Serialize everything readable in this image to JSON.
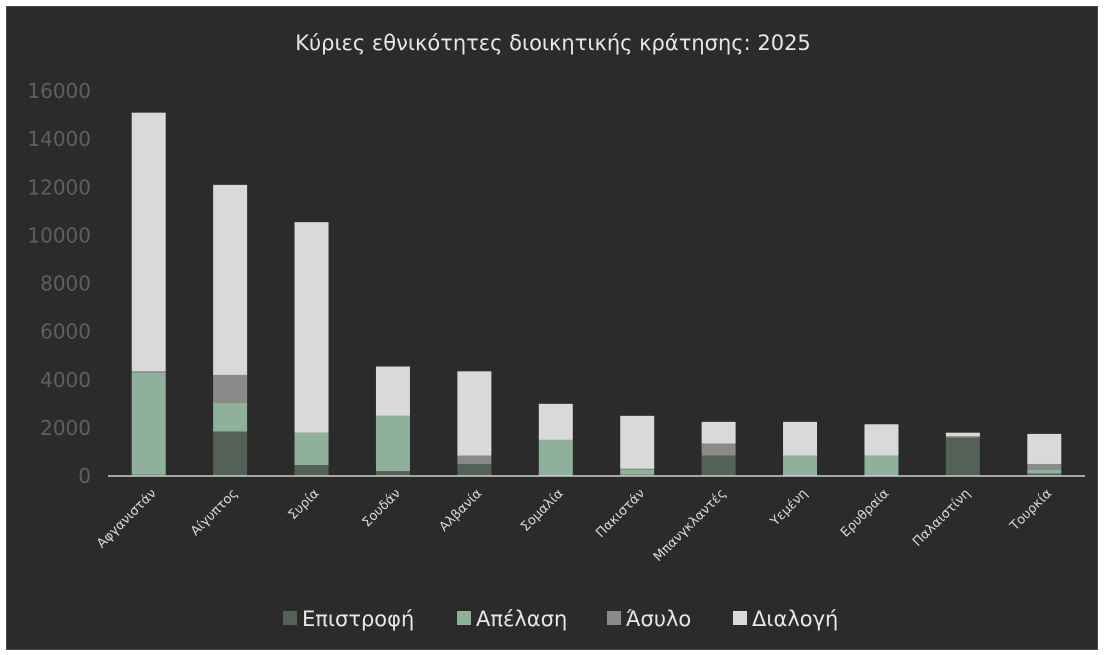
{
  "chart_data": {
    "type": "bar",
    "stacked": true,
    "title": "Κύριες εθνικότητες διοικητικής κράτησης: 2025",
    "categories": [
      "Αφγανιστάν",
      "Αίγυπτος",
      "Συρία",
      "Σουδάν",
      "Αλβανία",
      "Σομαλία",
      "Πακιστάν",
      "Μπανγκλαντές",
      "Υεμένη",
      "Ερυθραία",
      "Παλαιστίνη",
      "Τουρκία"
    ],
    "series": [
      {
        "name": "Επιστροφή",
        "color": "#546156",
        "values": [
          50,
          1850,
          450,
          200,
          500,
          0,
          50,
          850,
          0,
          0,
          1600,
          100
        ]
      },
      {
        "name": "Απέλαση",
        "color": "#8fb09b",
        "values": [
          4250,
          1200,
          1350,
          2300,
          0,
          1500,
          200,
          0,
          850,
          850,
          0,
          150
        ]
      },
      {
        "name": "Άσυλο",
        "color": "#8a8a8a",
        "values": [
          50,
          1150,
          0,
          0,
          350,
          0,
          50,
          500,
          0,
          0,
          50,
          250
        ]
      },
      {
        "name": "Διαλογή",
        "color": "#d9d9d9",
        "values": [
          10750,
          7900,
          8750,
          2050,
          3500,
          1500,
          2200,
          900,
          1400,
          1300,
          150,
          1250
        ]
      }
    ],
    "ylim": [
      0,
      16000
    ],
    "yticks": [
      0,
      2000,
      4000,
      6000,
      8000,
      10000,
      12000,
      14000,
      16000
    ],
    "grid": false,
    "legend_position": "bottom"
  }
}
